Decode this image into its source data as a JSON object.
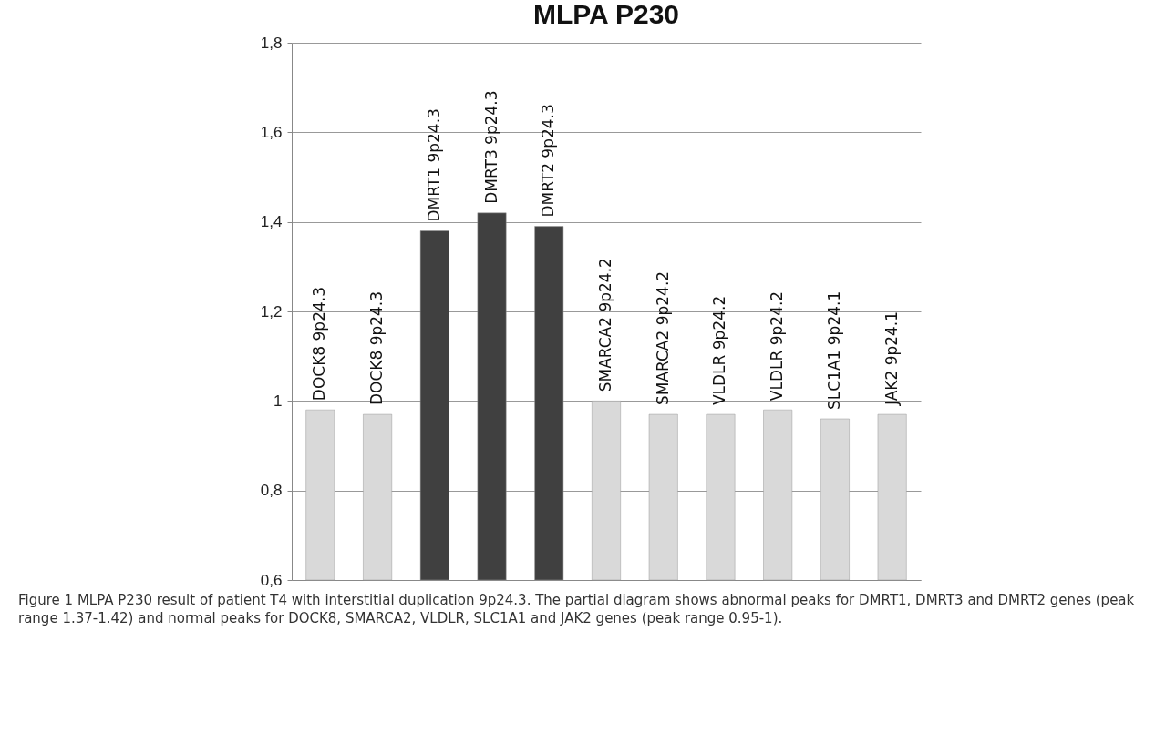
{
  "chart_data": {
    "type": "bar",
    "title": "MLPA P230",
    "categories": [
      "DOCK8 9p24.3",
      "DOCK8 9p24.3",
      "DMRT1 9p24.3",
      "DMRT3 9p24.3",
      "DMRT2 9p24.3",
      "SMARCA2 9p24.2",
      "SMARCA2 9p24.2",
      "VLDLR 9p24.2",
      "VLDLR 9p24.2",
      "SLC1A1 9p24.1",
      "JAK2 9p24.1"
    ],
    "values": [
      0.98,
      0.97,
      1.38,
      1.42,
      1.39,
      1.0,
      0.97,
      0.97,
      0.98,
      0.96,
      0.97
    ],
    "colors": [
      "#d9d9d9",
      "#d9d9d9",
      "#404040",
      "#404040",
      "#404040",
      "#d9d9d9",
      "#d9d9d9",
      "#d9d9d9",
      "#d9d9d9",
      "#d9d9d9",
      "#d9d9d9"
    ],
    "ylim": [
      0.6,
      1.8
    ],
    "yticks": [
      {
        "value": 0.6,
        "label": "0,6"
      },
      {
        "value": 0.8,
        "label": "0,8"
      },
      {
        "value": 1,
        "label": "1"
      },
      {
        "value": 1.2,
        "label": "1,2"
      },
      {
        "value": 1.4,
        "label": "1,4"
      },
      {
        "value": 1.6,
        "label": "1,6"
      },
      {
        "value": 1.8,
        "label": "1,8"
      }
    ],
    "grid": "y",
    "tick_labels": "y",
    "annotations": [
      "Figure 1 MLPA P230 result of patient T4 with interstitial duplication 9p24.3. The partial diagram shows abnormal peaks for DMRT1, DMRT3 and DMRT2 genes (peak range 1.37-1.42) and normal peaks for DOCK8, SMARCA2, VLDLR, SLC1A1 and JAK2 genes (peak range 0.95-1)."
    ]
  }
}
